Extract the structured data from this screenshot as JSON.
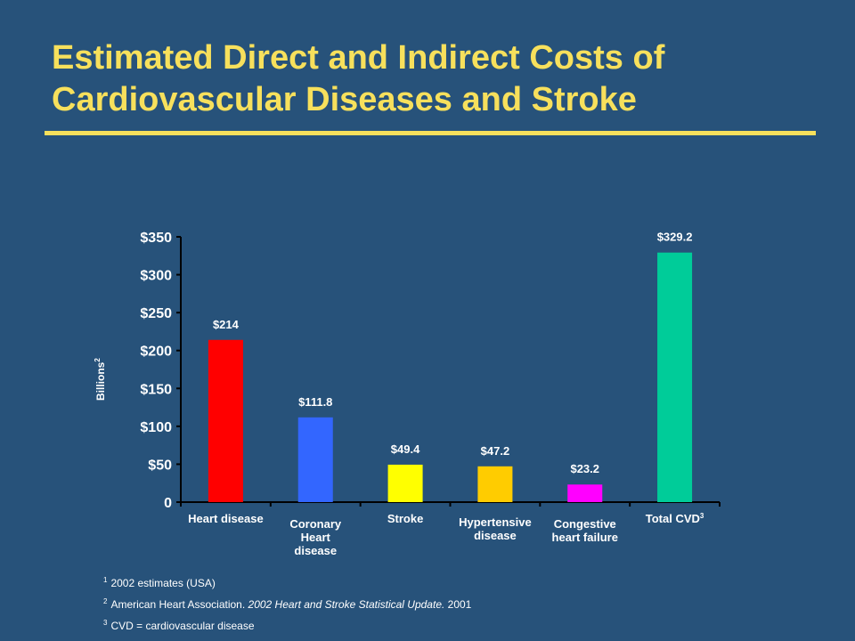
{
  "title": "Estimated Direct and Indirect Costs of Cardiovascular Diseases and Stroke",
  "colors": {
    "background": "#27527A",
    "title": "#F7E05C",
    "text": "#FFFFFF"
  },
  "chart_data": {
    "type": "bar",
    "ylabel": "Billions",
    "ylabel_sup": "2",
    "ylim": [
      0,
      350
    ],
    "yticks": [
      {
        "value": 0,
        "label": "0"
      },
      {
        "value": 50,
        "label": "$50"
      },
      {
        "value": 100,
        "label": "$100"
      },
      {
        "value": 150,
        "label": "$150"
      },
      {
        "value": 200,
        "label": "$200"
      },
      {
        "value": 250,
        "label": "$250"
      },
      {
        "value": 300,
        "label": "$300"
      },
      {
        "value": 350,
        "label": "$350"
      }
    ],
    "grid": false,
    "legend": "none",
    "bars": [
      {
        "category": [
          "Heart disease"
        ],
        "value": 214,
        "label": "$214",
        "color": "#FF0000"
      },
      {
        "category": [
          "Coronary",
          "Heart",
          "disease"
        ],
        "value": 111.8,
        "label": "$111.8",
        "color": "#3366FF"
      },
      {
        "category": [
          "Stroke"
        ],
        "value": 49.4,
        "label": "$49.4",
        "color": "#FFFF00"
      },
      {
        "category": [
          "Hypertensive",
          "disease"
        ],
        "value": 47.2,
        "label": "$47.2",
        "color": "#FFCC00"
      },
      {
        "category": [
          "Congestive",
          "heart failure"
        ],
        "value": 23.2,
        "label": "$23.2",
        "color": "#FF00FF"
      },
      {
        "category": [
          "Total CVD"
        ],
        "category_sup": "3",
        "value": 329.2,
        "label": "$329.2",
        "color": "#00CC99"
      }
    ]
  },
  "footnotes": [
    {
      "marker": "1",
      "text": "2002 estimates (USA)"
    },
    {
      "marker": "2",
      "text_before": "American Heart Association. ",
      "text_italic": "2002 Heart and Stroke Statistical Update.",
      "text_after": " 2001"
    },
    {
      "marker": "3",
      "text": "CVD = cardiovascular disease"
    }
  ]
}
